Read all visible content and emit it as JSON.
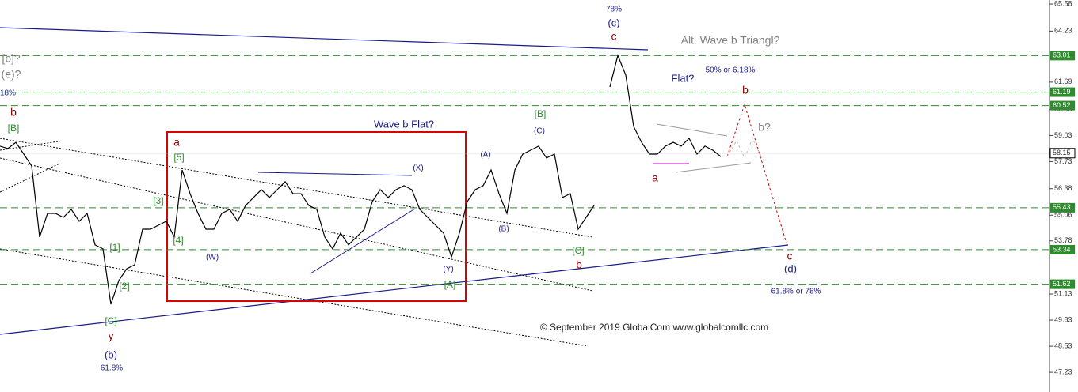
{
  "chart_data": {
    "type": "line",
    "color": "#000000",
    "values": [
      58.5,
      58.38,
      58.69,
      58.1,
      57.51,
      53.97,
      55.15,
      55.15,
      54.95,
      55.35,
      54.76,
      55.15,
      53.58,
      53.38,
      50.62,
      51.8,
      52.39,
      52.59,
      54.36,
      54.36,
      54.56,
      54.76,
      53.97,
      57.31,
      56.13,
      55.15,
      54.36,
      54.36,
      55.15,
      55.35,
      54.76,
      55.54,
      55.94,
      56.33,
      55.94,
      56.33,
      56.73,
      56.13,
      56.13,
      55.54,
      55.35,
      53.97,
      53.38,
      54.17,
      53.58,
      53.97,
      54.36,
      55.74,
      56.33,
      55.94,
      56.33,
      56.53,
      56.33,
      55.35,
      54.95,
      54.56,
      54.17,
      52.98,
      54.17,
      55.74,
      56.33,
      56.53,
      57.31,
      56.13,
      55.15,
      57.31,
      58.1,
      58.3,
      58.5,
      57.91,
      58.1,
      55.94,
      56.13,
      54.36,
      54.95,
      55.54,
      null,
      61.45,
      63.02,
      62.04,
      59.48,
      58.69,
      58.1,
      58.1,
      58.5,
      58.69,
      58.5,
      58.89,
      58.1,
      58.5,
      58.3,
      57.98
    ],
    "ylim": [
      46.25,
      65.78
    ],
    "yticks": [
      65.58,
      64.23,
      61.69,
      60.33,
      59.03,
      57.73,
      56.38,
      55.06,
      53.78,
      51.13,
      49.83,
      48.53,
      47.23
    ],
    "levels": [
      63.01,
      61.19,
      60.52,
      55.43,
      53.34,
      51.62
    ],
    "level_color": "#2e8b2e",
    "current_price": 58.15,
    "annotations": [
      "78%",
      "(c)",
      "c",
      "Alt. Wave b Triangl?",
      "50% or 6.18%",
      "Flat?",
      "b",
      "b?",
      "a",
      "[b]?",
      "(e)?",
      "18%",
      "b",
      "[B]",
      "a",
      "[5]",
      "Wave b Flat?",
      "(X)",
      "(A)",
      "[B]",
      "(C)",
      "[3]",
      "[4]",
      "(W)",
      "(B)",
      "[C]",
      "b",
      "(Y)",
      "[A]",
      "[1]",
      "[2]",
      "[C]",
      "y",
      "(b)",
      "61.8%",
      "c",
      "(d)",
      "61.8% or 78%",
      "© September 2019 GlobalCom www.globalcomllc.com"
    ]
  }
}
